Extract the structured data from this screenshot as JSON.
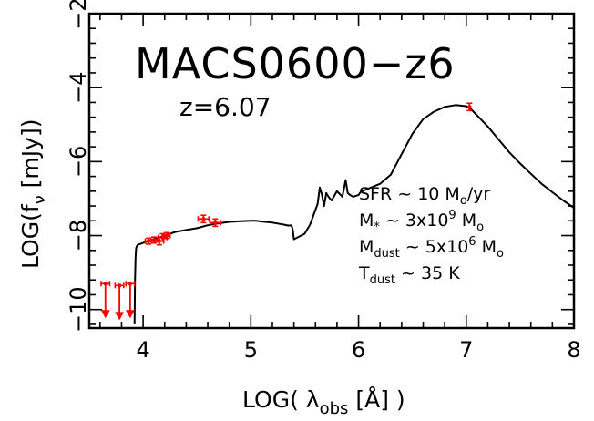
{
  "chart_data": {
    "type": "line",
    "title": "MACS0600−z6",
    "subtitle": "z=6.07",
    "xlabel": {
      "pre": "LOG( λ",
      "sub": "obs",
      "post": " [Å] )"
    },
    "ylabel": {
      "pre": "LOG(f",
      "sub": "ν",
      "post": " [mJy])"
    },
    "xlim": [
      3.5,
      8.0
    ],
    "ylim": [
      -10.5,
      -2.0
    ],
    "x_ticks": [
      4,
      5,
      6,
      7,
      8
    ],
    "x_tick_labels": [
      "4",
      "5",
      "6",
      "7",
      "8"
    ],
    "y_ticks": [
      -10,
      -8,
      -6,
      -4,
      -2
    ],
    "y_tick_labels": [
      "−10",
      "−8",
      "−6",
      "−4",
      "−2"
    ],
    "grid": false,
    "series": [
      {
        "kind": "model_sed",
        "color": "#000000",
        "x": [
          3.92,
          3.925,
          3.93,
          3.935,
          3.94,
          3.95,
          4.0,
          4.05,
          4.1,
          4.15,
          4.2,
          4.25,
          4.3,
          4.4,
          4.5,
          4.6,
          4.7,
          4.8,
          4.9,
          5.0,
          5.05,
          5.1,
          5.2,
          5.3,
          5.35,
          5.37,
          5.38,
          5.39,
          5.4,
          5.5,
          5.55,
          5.6,
          5.62,
          5.64,
          5.66,
          5.68,
          5.7,
          5.72,
          5.75,
          5.78,
          5.8,
          5.85,
          5.88,
          5.9,
          5.92,
          5.95,
          6.0,
          6.02,
          6.05,
          6.1,
          6.2,
          6.3,
          6.4,
          6.5,
          6.6,
          6.7,
          6.8,
          6.9,
          7.0,
          7.05,
          7.1,
          7.2,
          7.3,
          7.4,
          7.5,
          7.6,
          7.7,
          7.8,
          7.9,
          8.0
        ],
        "y": [
          -10.4,
          -9.2,
          -8.6,
          -8.35,
          -8.3,
          -8.25,
          -8.2,
          -8.15,
          -8.1,
          -8.05,
          -8.0,
          -7.95,
          -7.9,
          -7.85,
          -7.8,
          -7.72,
          -7.67,
          -7.63,
          -7.61,
          -7.6,
          -7.6,
          -7.62,
          -7.65,
          -7.7,
          -7.73,
          -7.72,
          -7.75,
          -7.85,
          -8.1,
          -7.95,
          -7.7,
          -7.3,
          -7.15,
          -6.7,
          -6.9,
          -7.2,
          -6.85,
          -6.95,
          -7.05,
          -6.9,
          -6.8,
          -6.95,
          -6.5,
          -6.85,
          -6.9,
          -6.95,
          -6.9,
          -6.82,
          -6.78,
          -6.72,
          -6.6,
          -6.35,
          -5.8,
          -5.25,
          -4.85,
          -4.65,
          -4.52,
          -4.47,
          -4.5,
          -4.6,
          -4.75,
          -5.05,
          -5.4,
          -5.75,
          -6.05,
          -6.33,
          -6.6,
          -6.83,
          -7.05,
          -7.25
        ]
      },
      {
        "kind": "photometry",
        "color": "#ff0000",
        "points": [
          {
            "x": 4.05,
            "y": -8.15,
            "xerr": 0.03,
            "yerr": 0.08
          },
          {
            "x": 4.1,
            "y": -8.12,
            "xerr": 0.03,
            "yerr": 0.08
          },
          {
            "x": 4.15,
            "y": -8.15,
            "xerr": 0.04,
            "yerr": 0.1
          },
          {
            "x": 4.18,
            "y": -8.05,
            "xerr": 0.04,
            "yerr": 0.1
          },
          {
            "x": 4.22,
            "y": -8.0,
            "xerr": 0.03,
            "yerr": 0.08
          },
          {
            "x": 4.56,
            "y": -7.55,
            "xerr": 0.05,
            "yerr": 0.1
          },
          {
            "x": 4.67,
            "y": -7.65,
            "xerr": 0.05,
            "yerr": 0.1
          },
          {
            "x": 7.03,
            "y": -4.52,
            "xerr": 0.0,
            "yerr": 0.1
          }
        ],
        "upper_limits": [
          {
            "x": 3.65,
            "y": -9.3,
            "xerr": 0.04
          },
          {
            "x": 3.78,
            "y": -9.35,
            "xerr": 0.04
          },
          {
            "x": 3.88,
            "y": -9.3,
            "xerr": 0.04
          }
        ]
      }
    ],
    "annotations": [
      {
        "pre": "SFR ~ 10 M",
        "sub": "o",
        "post": "/yr"
      },
      {
        "pre": "M",
        "sub": "*",
        "mid": " ~ 3x10",
        "sup": "9",
        "post": " M",
        "sub2": "o"
      },
      {
        "pre": "M",
        "sub": "dust",
        "mid": " ~ 5x10",
        "sup": "6",
        "post": " M",
        "sub2": "o"
      },
      {
        "pre": "T",
        "sub": "dust",
        "mid": " ~ 35 K"
      }
    ]
  }
}
